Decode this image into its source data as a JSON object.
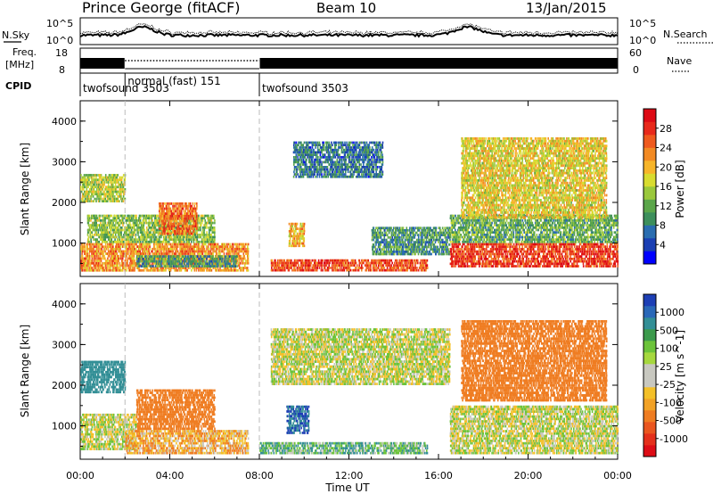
{
  "header": {
    "station": "Prince George (fitACF)",
    "beam": "Beam 10",
    "date": "13/Jan/2015"
  },
  "noise_panel": {
    "left_label": "N.Sky",
    "right_label": "N.Search",
    "left_top_tick": "10^5",
    "left_bottom_tick": "10^0",
    "right_top_tick": "10^5",
    "right_bottom_tick": "10^0"
  },
  "freq_panel": {
    "left_label_1": "Freq.",
    "left_label_2": "[MHz]",
    "left_top_tick": "18",
    "left_bottom_tick": "8",
    "right_top_tick": "60",
    "right_bottom_tick": "0",
    "right_label": "Nave"
  },
  "cpid": {
    "label": "CPID",
    "segments": [
      {
        "name": "twofsound 3503",
        "start_hour": 0,
        "end_hour": 2
      },
      {
        "name": "normal (fast) 151",
        "start_hour": 2,
        "end_hour": 8
      },
      {
        "name": "twofsound 3503",
        "start_hour": 8,
        "end_hour": 24
      }
    ]
  },
  "x_axis": {
    "label": "Time UT",
    "ticks": [
      "00:00",
      "04:00",
      "08:00",
      "12:00",
      "16:00",
      "20:00",
      "00:00"
    ]
  },
  "colorbars": {
    "power": {
      "label": "Power [dB]",
      "ticks": [
        "28",
        "24",
        "20",
        "16",
        "12",
        "8",
        "4"
      ],
      "colors": [
        "#0000ff",
        "#1a3fb3",
        "#2a6db0",
        "#3d8f5c",
        "#5ba64a",
        "#9ac83c",
        "#d8dc30",
        "#f7b52a",
        "#f28a23",
        "#ef5a1e",
        "#e8291b",
        "#dd0a14"
      ]
    },
    "velocity": {
      "label": "Velocity [m s^-1]",
      "ticks": [
        "1000",
        "500",
        "100",
        "25",
        "-25",
        "-100",
        "-500",
        "-1000"
      ],
      "colors": [
        "#1d3fb5",
        "#2a68b8",
        "#338f96",
        "#3c9a4c",
        "#6cc33a",
        "#a6d83e",
        "#c8c8c0",
        "#c8c8c0",
        "#f4c028",
        "#f2a226",
        "#ef7d22",
        "#ea561f",
        "#e4301b",
        "#dd0d16"
      ]
    }
  },
  "chart_data": [
    {
      "type": "heatmap",
      "panel": "power",
      "ylabel": "Slant Range [km]",
      "xlabel": "",
      "xlim_hours": [
        0,
        24
      ],
      "ylim": [
        180,
        4500
      ],
      "yticks": [
        "1000",
        "2000",
        "3000",
        "4000"
      ],
      "regions": [
        {
          "t0": 0.0,
          "t1": 7.5,
          "r0": 300,
          "r1": 1000,
          "level": 22
        },
        {
          "t0": 0.3,
          "t1": 6.0,
          "r0": 1000,
          "r1": 1700,
          "level": 14
        },
        {
          "t0": 0.0,
          "t1": 2.0,
          "r0": 2000,
          "r1": 2700,
          "level": 16
        },
        {
          "t0": 3.5,
          "t1": 5.2,
          "r0": 1200,
          "r1": 2000,
          "level": 24
        },
        {
          "t0": 2.5,
          "t1": 7.0,
          "r0": 400,
          "r1": 700,
          "level": 10
        },
        {
          "t0": 8.5,
          "t1": 15.5,
          "r0": 300,
          "r1": 600,
          "level": 26
        },
        {
          "t0": 9.3,
          "t1": 10.0,
          "r0": 900,
          "r1": 1500,
          "level": 20
        },
        {
          "t0": 9.5,
          "t1": 13.5,
          "r0": 2600,
          "r1": 3500,
          "level": 8
        },
        {
          "t0": 13.0,
          "t1": 16.5,
          "r0": 700,
          "r1": 1400,
          "level": 10
        },
        {
          "t0": 16.5,
          "t1": 24.0,
          "r0": 400,
          "r1": 1000,
          "level": 27
        },
        {
          "t0": 16.5,
          "t1": 24.0,
          "r0": 1000,
          "r1": 1700,
          "level": 12
        },
        {
          "t0": 17.0,
          "t1": 23.5,
          "r0": 1600,
          "r1": 3600,
          "level": 18
        }
      ]
    },
    {
      "type": "heatmap",
      "panel": "velocity",
      "ylabel": "Slant Range [km]",
      "xlabel": "Time UT",
      "xlim_hours": [
        0,
        24
      ],
      "ylim": [
        180,
        4500
      ],
      "yticks": [
        "1000",
        "2000",
        "3000",
        "4000"
      ],
      "regions": [
        {
          "t0": 0.0,
          "t1": 2.5,
          "r0": 400,
          "r1": 1300,
          "v": 0
        },
        {
          "t0": 0.0,
          "t1": 2.0,
          "r0": 1800,
          "r1": 2600,
          "v": 300
        },
        {
          "t0": 2.5,
          "t1": 6.0,
          "r0": 900,
          "r1": 1900,
          "v": -200
        },
        {
          "t0": 2.0,
          "t1": 7.5,
          "r0": 300,
          "r1": 900,
          "v": -80
        },
        {
          "t0": 8.0,
          "t1": 15.5,
          "r0": 300,
          "r1": 600,
          "v": 80
        },
        {
          "t0": 9.2,
          "t1": 10.2,
          "r0": 800,
          "r1": 1500,
          "v": 500
        },
        {
          "t0": 8.5,
          "t1": 16.5,
          "r0": 2000,
          "r1": 3400,
          "v": 0
        },
        {
          "t0": 16.5,
          "t1": 24.0,
          "r0": 300,
          "r1": 1500,
          "v": 0
        },
        {
          "t0": 17.0,
          "t1": 23.5,
          "r0": 1600,
          "r1": 3600,
          "v": -400
        }
      ]
    }
  ]
}
